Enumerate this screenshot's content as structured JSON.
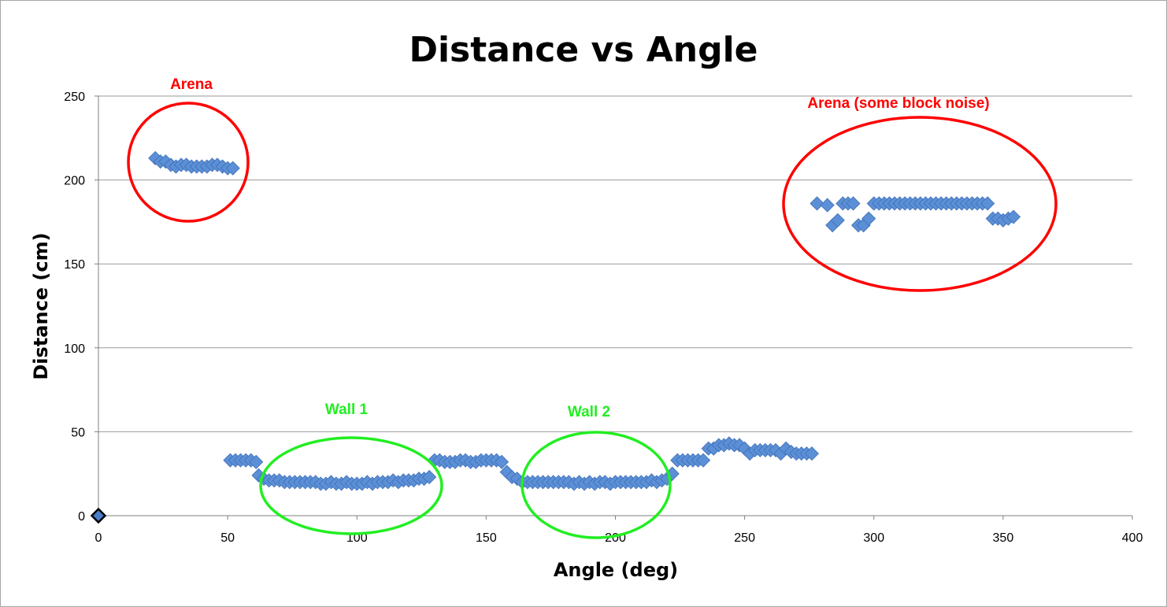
{
  "chart_data": {
    "type": "scatter",
    "title": "Distance vs Angle",
    "xlabel": "Angle (deg)",
    "ylabel": "Distance (cm)",
    "xlim": [
      0,
      400
    ],
    "ylim": [
      0,
      250
    ],
    "xticks": [
      "0",
      "50",
      "100",
      "150",
      "200",
      "250",
      "300",
      "350",
      "400"
    ],
    "yticks": [
      "0",
      "50",
      "100",
      "150",
      "200",
      "250"
    ],
    "grid": "horizontal",
    "legend": "none",
    "marker_color": "#5b8fd6",
    "points": [
      [
        0,
        0
      ],
      [
        22,
        213
      ],
      [
        24,
        211
      ],
      [
        26,
        211
      ],
      [
        28,
        209
      ],
      [
        30,
        208
      ],
      [
        32,
        209
      ],
      [
        34,
        209
      ],
      [
        36,
        208
      ],
      [
        38,
        208
      ],
      [
        40,
        208
      ],
      [
        42,
        208
      ],
      [
        44,
        209
      ],
      [
        46,
        209
      ],
      [
        48,
        208
      ],
      [
        50,
        207
      ],
      [
        52,
        207
      ],
      [
        51,
        33
      ],
      [
        53,
        33
      ],
      [
        55,
        33
      ],
      [
        57,
        33
      ],
      [
        59,
        33
      ],
      [
        61,
        32
      ],
      [
        62,
        24
      ],
      [
        64,
        22
      ],
      [
        66,
        21
      ],
      [
        68,
        21
      ],
      [
        70,
        21
      ],
      [
        72,
        20
      ],
      [
        74,
        20
      ],
      [
        76,
        20
      ],
      [
        78,
        20
      ],
      [
        80,
        20
      ],
      [
        82,
        20
      ],
      [
        84,
        20
      ],
      [
        86,
        19
      ],
      [
        88,
        19
      ],
      [
        90,
        20
      ],
      [
        92,
        19
      ],
      [
        94,
        19
      ],
      [
        96,
        20
      ],
      [
        98,
        19
      ],
      [
        100,
        19
      ],
      [
        102,
        19
      ],
      [
        104,
        20
      ],
      [
        106,
        19
      ],
      [
        108,
        20
      ],
      [
        110,
        20
      ],
      [
        112,
        20
      ],
      [
        114,
        21
      ],
      [
        116,
        20
      ],
      [
        118,
        21
      ],
      [
        120,
        21
      ],
      [
        122,
        21
      ],
      [
        124,
        22
      ],
      [
        126,
        22
      ],
      [
        128,
        23
      ],
      [
        130,
        33
      ],
      [
        132,
        33
      ],
      [
        134,
        32
      ],
      [
        136,
        32
      ],
      [
        138,
        32
      ],
      [
        140,
        33
      ],
      [
        142,
        33
      ],
      [
        144,
        32
      ],
      [
        146,
        32
      ],
      [
        148,
        33
      ],
      [
        150,
        33
      ],
      [
        152,
        33
      ],
      [
        154,
        33
      ],
      [
        156,
        32
      ],
      [
        158,
        26
      ],
      [
        160,
        23
      ],
      [
        162,
        22
      ],
      [
        164,
        20
      ],
      [
        166,
        20
      ],
      [
        168,
        20
      ],
      [
        170,
        20
      ],
      [
        172,
        20
      ],
      [
        174,
        20
      ],
      [
        176,
        20
      ],
      [
        178,
        20
      ],
      [
        180,
        20
      ],
      [
        182,
        20
      ],
      [
        184,
        19
      ],
      [
        186,
        20
      ],
      [
        188,
        19
      ],
      [
        190,
        20
      ],
      [
        192,
        19
      ],
      [
        194,
        20
      ],
      [
        196,
        20
      ],
      [
        198,
        19
      ],
      [
        200,
        20
      ],
      [
        202,
        20
      ],
      [
        204,
        20
      ],
      [
        206,
        20
      ],
      [
        208,
        20
      ],
      [
        210,
        20
      ],
      [
        212,
        20
      ],
      [
        214,
        21
      ],
      [
        216,
        20
      ],
      [
        218,
        21
      ],
      [
        220,
        22
      ],
      [
        222,
        25
      ],
      [
        224,
        33
      ],
      [
        226,
        33
      ],
      [
        228,
        33
      ],
      [
        230,
        33
      ],
      [
        232,
        33
      ],
      [
        234,
        33
      ],
      [
        236,
        40
      ],
      [
        238,
        40
      ],
      [
        240,
        42
      ],
      [
        242,
        42
      ],
      [
        244,
        43
      ],
      [
        246,
        42
      ],
      [
        248,
        42
      ],
      [
        250,
        40
      ],
      [
        252,
        37
      ],
      [
        254,
        39
      ],
      [
        256,
        39
      ],
      [
        258,
        39
      ],
      [
        260,
        39
      ],
      [
        262,
        39
      ],
      [
        264,
        37
      ],
      [
        266,
        40
      ],
      [
        268,
        38
      ],
      [
        270,
        37
      ],
      [
        272,
        37
      ],
      [
        274,
        37
      ],
      [
        276,
        37
      ],
      [
        278,
        186
      ],
      [
        282,
        185
      ],
      [
        284,
        173
      ],
      [
        286,
        176
      ],
      [
        288,
        186
      ],
      [
        290,
        186
      ],
      [
        292,
        186
      ],
      [
        294,
        173
      ],
      [
        296,
        173
      ],
      [
        298,
        177
      ],
      [
        300,
        186
      ],
      [
        302,
        186
      ],
      [
        304,
        186
      ],
      [
        306,
        186
      ],
      [
        308,
        186
      ],
      [
        310,
        186
      ],
      [
        312,
        186
      ],
      [
        314,
        186
      ],
      [
        316,
        186
      ],
      [
        318,
        186
      ],
      [
        320,
        186
      ],
      [
        322,
        186
      ],
      [
        324,
        186
      ],
      [
        326,
        186
      ],
      [
        328,
        186
      ],
      [
        330,
        186
      ],
      [
        332,
        186
      ],
      [
        334,
        186
      ],
      [
        336,
        186
      ],
      [
        338,
        186
      ],
      [
        340,
        186
      ],
      [
        342,
        186
      ],
      [
        344,
        186
      ],
      [
        346,
        177
      ],
      [
        348,
        177
      ],
      [
        350,
        176
      ],
      [
        352,
        177
      ],
      [
        354,
        178
      ]
    ],
    "annotations": [
      {
        "text": "Arena",
        "color": "#ff0000"
      },
      {
        "text": "Arena (some block noise)",
        "color": "#ff0000"
      },
      {
        "text": "Wall 1",
        "color": "#22ee22"
      },
      {
        "text": "Wall 2",
        "color": "#22ee22"
      }
    ]
  }
}
